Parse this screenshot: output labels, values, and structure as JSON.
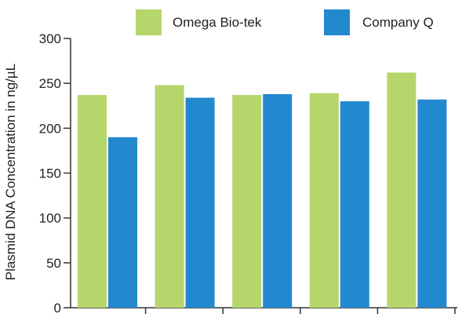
{
  "chart_data": {
    "type": "bar",
    "title": "",
    "xlabel": "",
    "ylabel": "Plasmid DNA Concentration in ng/µL",
    "ylim": [
      0,
      300
    ],
    "yticks": [
      "0",
      "50",
      "100",
      "150",
      "200",
      "250",
      "300"
    ],
    "categories": [
      "",
      "",
      "",
      "",
      ""
    ],
    "series": [
      {
        "name": "Omega Bio-tek",
        "color": "#b5d66b",
        "values": [
          237,
          248,
          237,
          239,
          262
        ]
      },
      {
        "name": "Company Q",
        "color": "#2389cf",
        "values": [
          190,
          234,
          238,
          230,
          232
        ]
      }
    ],
    "legend": "top",
    "grid": false
  }
}
